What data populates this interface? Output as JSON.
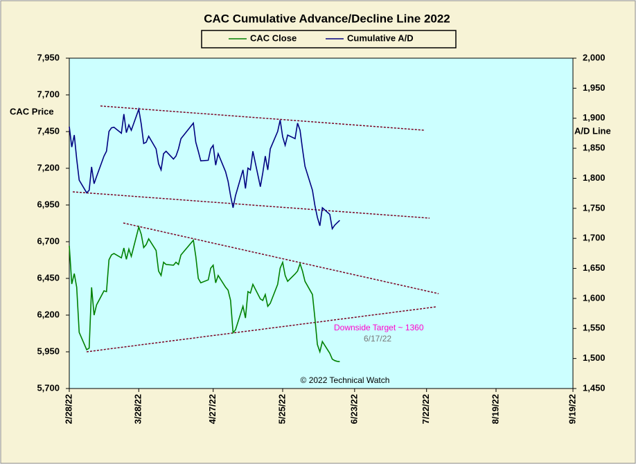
{
  "chart_data": {
    "type": "line",
    "title": "CAC Cumulative  Advance/Decline Line 2022",
    "ylabel": "CAC Price",
    "y2label": "A/D Line",
    "annotations": [
      "Downside Target ~ 1360",
      "6/17/22"
    ],
    "credit": "© 2022 Technical Watch",
    "x": [
      "2/28/22",
      "3/1/22",
      "3/2/22",
      "3/3/22",
      "3/4/22",
      "3/7/22",
      "3/8/22",
      "3/9/22",
      "3/10/22",
      "3/11/22",
      "3/14/22",
      "3/15/22",
      "3/16/22",
      "3/17/22",
      "3/18/22",
      "3/21/22",
      "3/22/22",
      "3/23/22",
      "3/24/22",
      "3/25/22",
      "3/28/22",
      "3/29/22",
      "3/30/22",
      "3/31/22",
      "4/1/22",
      "4/4/22",
      "4/5/22",
      "4/6/22",
      "4/7/22",
      "4/8/22",
      "4/11/22",
      "4/12/22",
      "4/13/22",
      "4/14/22",
      "4/19/22",
      "4/20/22",
      "4/21/22",
      "4/22/22",
      "4/25/22",
      "4/26/22",
      "4/27/22",
      "4/28/22",
      "4/29/22",
      "5/2/22",
      "5/3/22",
      "5/4/22",
      "5/5/22",
      "5/6/22",
      "5/9/22",
      "5/10/22",
      "5/11/22",
      "5/12/22",
      "5/13/22",
      "5/16/22",
      "5/17/22",
      "5/18/22",
      "5/19/22",
      "5/20/22",
      "5/23/22",
      "5/24/22",
      "5/25/22",
      "5/26/22",
      "5/27/22",
      "5/30/22",
      "5/31/22",
      "6/1/22",
      "6/2/22",
      "6/3/22",
      "6/6/22",
      "6/7/22",
      "6/8/22",
      "6/9/22",
      "6/10/22",
      "6/13/22",
      "6/14/22",
      "6/15/22",
      "6/16/22",
      "6/17/22"
    ],
    "series": [
      {
        "name": "CAC Close",
        "color": "#008000",
        "values": [
          6672,
          6412,
          6483,
          6389,
          6082,
          5964,
          5975,
          6389,
          6200,
          6270,
          6365,
          6360,
          6577,
          6610,
          6620,
          6590,
          6657,
          6580,
          6650,
          6600,
          6800,
          6750,
          6660,
          6680,
          6720,
          6640,
          6500,
          6470,
          6560,
          6545,
          6540,
          6560,
          6545,
          6610,
          6710,
          6600,
          6450,
          6420,
          6440,
          6520,
          6540,
          6420,
          6470,
          6390,
          6370,
          6300,
          6080,
          6100,
          6260,
          6180,
          6360,
          6350,
          6410,
          6310,
          6300,
          6340,
          6260,
          6280,
          6410,
          6520,
          6560,
          6470,
          6430,
          6480,
          6500,
          6550,
          6500,
          6430,
          6340,
          6180,
          6000,
          5950,
          6020,
          5940,
          5900,
          5890,
          5885,
          5883
        ]
      },
      {
        "name": "Cumulative A/D",
        "color": "#000080",
        "axis": "y2",
        "values": [
          1886,
          1852,
          1872,
          1832,
          1797,
          1776,
          1780,
          1819,
          1791,
          1803,
          1837,
          1845,
          1878,
          1884,
          1885,
          1875,
          1907,
          1876,
          1889,
          1880,
          1915,
          1890,
          1858,
          1860,
          1870,
          1849,
          1824,
          1814,
          1841,
          1845,
          1832,
          1837,
          1849,
          1866,
          1892,
          1860,
          1845,
          1829,
          1830,
          1849,
          1855,
          1822,
          1841,
          1811,
          1795,
          1771,
          1751,
          1771,
          1814,
          1783,
          1817,
          1814,
          1845,
          1786,
          1809,
          1837,
          1814,
          1849,
          1878,
          1897,
          1869,
          1855,
          1872,
          1866,
          1892,
          1880,
          1849,
          1820,
          1780,
          1755,
          1735,
          1721,
          1751,
          1740,
          1716,
          1722,
          1726,
          1730
        ]
      }
    ],
    "xlim": [
      "2/28/22",
      "9/19/22"
    ],
    "xticks": [
      "2/28/22",
      "3/28/22",
      "4/27/22",
      "5/25/22",
      "6/23/22",
      "7/22/22",
      "8/19/22",
      "9/19/22"
    ],
    "ylim": [
      5700,
      7950
    ],
    "yticks": [
      {
        "value": 5700,
        "label": "5,700"
      },
      {
        "value": 5950,
        "label": "5,950"
      },
      {
        "value": 6200,
        "label": "6,200"
      },
      {
        "value": 6450,
        "label": "6,450"
      },
      {
        "value": 6700,
        "label": "6,700"
      },
      {
        "value": 6950,
        "label": "6,950"
      },
      {
        "value": 7200,
        "label": "7,200"
      },
      {
        "value": 7450,
        "label": "7,450"
      },
      {
        "value": 7700,
        "label": "7,700"
      },
      {
        "value": 7950,
        "label": "7,950"
      }
    ],
    "y2lim": [
      1450,
      2000
    ],
    "y2ticks": [
      {
        "value": 1450,
        "label": "1,450"
      },
      {
        "value": 1500,
        "label": "1,500"
      },
      {
        "value": 1550,
        "label": "1,550"
      },
      {
        "value": 1600,
        "label": "1,600"
      },
      {
        "value": 1650,
        "label": "1,650"
      },
      {
        "value": 1700,
        "label": "1,700"
      },
      {
        "value": 1750,
        "label": "1,750"
      },
      {
        "value": 1800,
        "label": "1,800"
      },
      {
        "value": 1850,
        "label": "1,850"
      },
      {
        "value": 1900,
        "label": "1,900"
      },
      {
        "value": 1950,
        "label": "1,950"
      },
      {
        "value": 2000,
        "label": "2,000"
      }
    ],
    "legend": "top"
  }
}
